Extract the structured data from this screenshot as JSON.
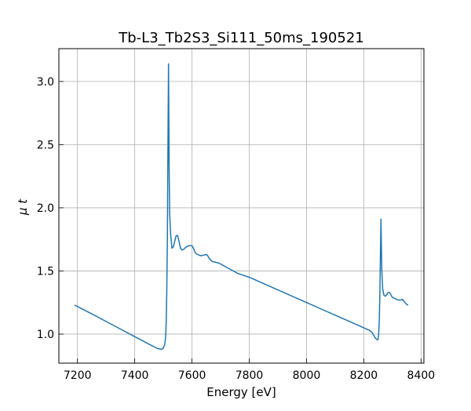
{
  "chart_data": {
    "type": "line",
    "title": "Tb-L3_Tb2S3_Si111_50ms_190521",
    "xlabel": "Energy [eV]",
    "ylabel": "μ t",
    "xlim": [
      7135,
      8410
    ],
    "ylim": [
      0.77,
      3.26
    ],
    "xticks": [
      7200,
      7400,
      7600,
      7800,
      8000,
      8200,
      8400
    ],
    "yticks": [
      1.0,
      1.5,
      2.0,
      2.5,
      3.0
    ],
    "xtick_labels": [
      "7200",
      "7400",
      "7600",
      "7800",
      "8000",
      "8200",
      "8400"
    ],
    "ytick_labels": [
      "1.0",
      "1.5",
      "2.0",
      "2.5",
      "3.0"
    ],
    "grid": true,
    "series": [
      {
        "color": "#1f77b4",
        "x": [
          7190,
          7250,
          7300,
          7350,
          7400,
          7450,
          7480,
          7495,
          7500,
          7505,
          7508,
          7510,
          7512,
          7514,
          7516,
          7518,
          7520,
          7522,
          7525,
          7530,
          7535,
          7540,
          7545,
          7550,
          7555,
          7560,
          7565,
          7570,
          7575,
          7580,
          7590,
          7600,
          7605,
          7610,
          7615,
          7620,
          7630,
          7640,
          7650,
          7655,
          7660,
          7670,
          7680,
          7690,
          7700,
          7720,
          7740,
          7760,
          7780,
          7800,
          7850,
          7900,
          7950,
          8000,
          8050,
          8100,
          8150,
          8200,
          8220,
          8230,
          8235,
          8240,
          8245,
          8248,
          8250,
          8252,
          8254,
          8256,
          8258,
          8260,
          8263,
          8266,
          8270,
          8275,
          8280,
          8285,
          8290,
          8295,
          8300,
          8310,
          8320,
          8330,
          8335,
          8340,
          8350,
          8355
        ],
        "y": [
          1.23,
          1.16,
          1.1,
          1.04,
          0.98,
          0.92,
          0.885,
          0.88,
          0.89,
          0.92,
          0.98,
          1.1,
          1.35,
          1.75,
          2.5,
          3.14,
          2.35,
          1.95,
          1.8,
          1.68,
          1.69,
          1.74,
          1.78,
          1.78,
          1.73,
          1.68,
          1.665,
          1.67,
          1.68,
          1.69,
          1.7,
          1.7,
          1.68,
          1.65,
          1.635,
          1.63,
          1.62,
          1.625,
          1.63,
          1.62,
          1.6,
          1.575,
          1.57,
          1.565,
          1.555,
          1.53,
          1.505,
          1.48,
          1.465,
          1.45,
          1.4,
          1.35,
          1.3,
          1.25,
          1.2,
          1.15,
          1.1,
          1.05,
          1.03,
          1.01,
          0.99,
          0.97,
          0.96,
          0.955,
          0.96,
          1.0,
          1.1,
          1.3,
          1.6,
          1.91,
          1.5,
          1.36,
          1.31,
          1.3,
          1.31,
          1.33,
          1.33,
          1.31,
          1.29,
          1.28,
          1.27,
          1.27,
          1.275,
          1.26,
          1.235,
          1.23
        ]
      }
    ]
  }
}
